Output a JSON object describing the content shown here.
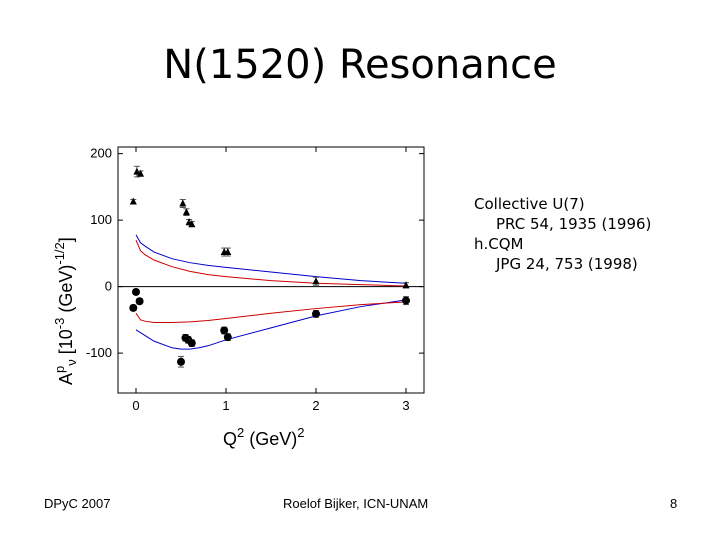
{
  "slide": {
    "title": "N(1520) Resonance",
    "legend": [
      "Collective U(7)",
      "PRC 54, 1935 (1996)",
      "h.CQM",
      "JPG 24, 753 (1998)"
    ],
    "footer_left": "DPyC 2007",
    "footer_center": "Roelof Bijker, ICN-UNAM",
    "footer_right": "8"
  },
  "chart_data": {
    "type": "scatter",
    "title": "",
    "xlabel": "Q² (GeV)²",
    "ylabel": "Ap_ν [10⁻³ (GeV)⁻¹/²]",
    "xlim": [
      -0.2,
      3.2
    ],
    "ylim": [
      -160,
      210
    ],
    "xticks": [
      0,
      1,
      2,
      3
    ],
    "yticks": [
      -100,
      0,
      100,
      200
    ],
    "zero_line": true,
    "series": [
      {
        "marker": "triangle",
        "color": "#000000",
        "x": [
          -0.03,
          0.01,
          0.05,
          0.52,
          0.56,
          0.59,
          0.62,
          0.98,
          1.02,
          2.0,
          3.0
        ],
        "y": [
          128,
          173,
          170,
          125,
          112,
          97,
          94,
          52,
          52,
          8,
          2
        ],
        "err": [
          3,
          8,
          4,
          6,
          5,
          4,
          4,
          6,
          6,
          6,
          4
        ]
      },
      {
        "marker": "circle",
        "color": "#000000",
        "x": [
          -0.03,
          0.0,
          0.04,
          0.5,
          0.55,
          0.58,
          0.62,
          0.98,
          1.02,
          2.0,
          3.0
        ],
        "y": [
          -32,
          -8,
          -22,
          -113,
          -77,
          -80,
          -85,
          -66,
          -76,
          -41,
          -21
        ],
        "err": [
          4,
          4,
          4,
          8,
          5,
          5,
          5,
          5,
          5,
          5,
          6
        ]
      },
      {
        "marker": "line",
        "color": "#0000cc",
        "x": [
          0.0,
          0.05,
          0.1,
          0.2,
          0.4,
          0.6,
          0.8,
          1.0,
          1.5,
          2.0,
          2.5,
          3.0
        ],
        "y": [
          78,
          66,
          61,
          52,
          42,
          36,
          32,
          29,
          22,
          15,
          9,
          5
        ]
      },
      {
        "marker": "line",
        "color": "#cc0000",
        "x": [
          0.0,
          0.05,
          0.1,
          0.2,
          0.4,
          0.6,
          0.8,
          1.0,
          1.5,
          2.0,
          2.5,
          3.0
        ],
        "y": [
          70,
          54,
          48,
          40,
          30,
          23,
          18,
          15,
          9,
          5,
          3,
          1
        ]
      },
      {
        "marker": "line",
        "color": "#0000cc",
        "x": [
          0.0,
          0.2,
          0.4,
          0.5,
          0.6,
          0.7,
          0.8,
          1.0,
          1.5,
          2.0,
          2.5,
          3.0
        ],
        "y": [
          -65,
          -82,
          -92,
          -94,
          -94,
          -92,
          -89,
          -80,
          -62,
          -44,
          -30,
          -20
        ]
      },
      {
        "marker": "line",
        "color": "#cc0000",
        "x": [
          0.0,
          0.05,
          0.1,
          0.2,
          0.4,
          0.6,
          0.8,
          1.0,
          1.5,
          2.0,
          2.5,
          3.0
        ],
        "y": [
          -40,
          -50,
          -52,
          -54,
          -54,
          -53,
          -51,
          -48,
          -40,
          -33,
          -27,
          -23
        ]
      }
    ]
  }
}
